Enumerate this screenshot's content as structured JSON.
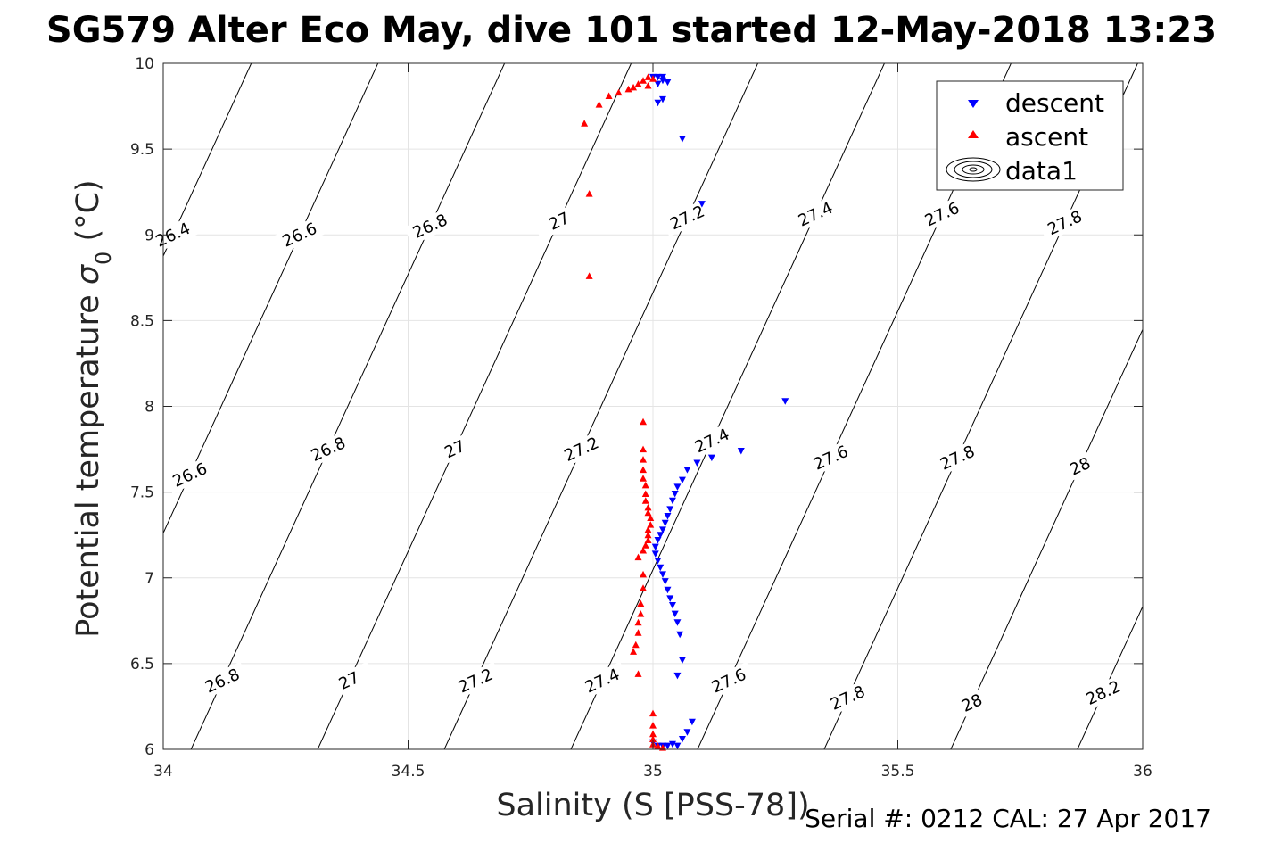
{
  "chart_data": {
    "type": "scatter",
    "title": "SG579 Alter Eco May, dive 101 started 12-May-2018 13:23",
    "xlabel": "Salinity (S [PSS-78])",
    "ylabel_main": "Potential temperature ",
    "ylabel_sigma": "σ",
    "ylabel_sub": "0",
    "ylabel_unit": " (°C)",
    "xlim": [
      34,
      36
    ],
    "ylim": [
      6,
      10
    ],
    "xticks": [
      34,
      34.5,
      35,
      35.5,
      36
    ],
    "xtick_labels": [
      "34",
      "34.5",
      "35",
      "35.5",
      "36"
    ],
    "yticks": [
      6,
      6.5,
      7,
      7.5,
      8,
      8.5,
      9,
      9.5,
      10
    ],
    "ytick_labels": [
      "6",
      "6.5",
      "7",
      "7.5",
      "8",
      "8.5",
      "9",
      "9.5",
      "10"
    ],
    "grid": true,
    "legend_position": "top-right",
    "legend": [
      {
        "name": "descent",
        "marker": "triangle-down",
        "color": "#0000ff"
      },
      {
        "name": "ascent",
        "marker": "triangle-up",
        "color": "#ff0000"
      },
      {
        "name": "data1",
        "marker": "contour",
        "color": "#000000"
      }
    ],
    "footer": "Serial #: 0212  CAL: 27 Apr 2017",
    "contours": {
      "levels": [
        26.4,
        26.6,
        26.8,
        27.0,
        27.2,
        27.4,
        27.6,
        27.8,
        28.0,
        28.2
      ],
      "labels": [
        {
          "text": "26.4",
          "s": 34.08,
          "t": 9.0
        },
        {
          "text": "26.6",
          "s": 34.33,
          "t": 9.0
        },
        {
          "text": "26.8",
          "s": 34.58,
          "t": 9.05
        },
        {
          "text": "27",
          "s": 34.84,
          "t": 9.08
        },
        {
          "text": "27.2",
          "s": 35.13,
          "t": 9.1
        },
        {
          "text": "27.4",
          "s": 35.38,
          "t": 9.12
        },
        {
          "text": "27.6",
          "s": 35.63,
          "t": 9.12
        },
        {
          "text": "27.8",
          "s": 35.87,
          "t": 9.07
        },
        {
          "text": "26.6",
          "s": 34.07,
          "t": 7.6
        },
        {
          "text": "26.8",
          "s": 34.35,
          "t": 7.75
        },
        {
          "text": "27",
          "s": 34.6,
          "t": 7.75
        },
        {
          "text": "27.2",
          "s": 34.85,
          "t": 7.75
        },
        {
          "text": "27.4",
          "s": 35.12,
          "t": 7.8
        },
        {
          "text": "27.6",
          "s": 35.37,
          "t": 7.7
        },
        {
          "text": "27.8",
          "s": 35.61,
          "t": 7.7
        },
        {
          "text": "28",
          "s": 35.86,
          "t": 7.65
        },
        {
          "text": "26.8",
          "s": 34.11,
          "t": 6.4
        },
        {
          "text": "27",
          "s": 34.35,
          "t": 6.4
        },
        {
          "text": "27.2",
          "s": 34.6,
          "t": 6.4
        },
        {
          "text": "27.4",
          "s": 34.85,
          "t": 6.4
        },
        {
          "text": "27.6",
          "s": 35.12,
          "t": 6.4
        },
        {
          "text": "27.8",
          "s": 35.36,
          "t": 6.3
        },
        {
          "text": "28",
          "s": 35.61,
          "t": 6.27
        },
        {
          "text": "28.2",
          "s": 35.86,
          "t": 6.33
        }
      ]
    },
    "series": [
      {
        "name": "descent",
        "marker": "triangle-down",
        "color": "#0000ff",
        "points": [
          [
            35.0,
            9.92
          ],
          [
            35.01,
            9.92
          ],
          [
            35.02,
            9.92
          ],
          [
            35.02,
            9.9
          ],
          [
            35.01,
            9.88
          ],
          [
            35.03,
            9.89
          ],
          [
            35.02,
            9.79
          ],
          [
            35.01,
            9.77
          ],
          [
            35.06,
            9.56
          ],
          [
            35.1,
            9.18
          ],
          [
            35.27,
            8.03
          ],
          [
            35.18,
            7.74
          ],
          [
            35.12,
            7.7
          ],
          [
            35.09,
            7.67
          ],
          [
            35.07,
            7.63
          ],
          [
            35.06,
            7.57
          ],
          [
            35.05,
            7.53
          ],
          [
            35.045,
            7.49
          ],
          [
            35.04,
            7.45
          ],
          [
            35.035,
            7.4
          ],
          [
            35.03,
            7.36
          ],
          [
            35.025,
            7.32
          ],
          [
            35.02,
            7.28
          ],
          [
            35.015,
            7.25
          ],
          [
            35.01,
            7.22
          ],
          [
            35.005,
            7.18
          ],
          [
            35.005,
            7.14
          ],
          [
            35.01,
            7.1
          ],
          [
            35.015,
            7.06
          ],
          [
            35.02,
            7.02
          ],
          [
            35.025,
            6.98
          ],
          [
            35.03,
            6.93
          ],
          [
            35.035,
            6.88
          ],
          [
            35.04,
            6.84
          ],
          [
            35.045,
            6.79
          ],
          [
            35.05,
            6.74
          ],
          [
            35.055,
            6.67
          ],
          [
            35.06,
            6.52
          ],
          [
            35.05,
            6.43
          ],
          [
            35.08,
            6.16
          ],
          [
            35.07,
            6.1
          ],
          [
            35.06,
            6.06
          ],
          [
            35.04,
            6.03
          ],
          [
            35.02,
            6.02
          ],
          [
            35.01,
            6.02
          ],
          [
            35.0,
            6.04
          ],
          [
            35.05,
            6.02
          ],
          [
            35.03,
            6.02
          ]
        ]
      },
      {
        "name": "ascent",
        "marker": "triangle-up",
        "color": "#ff0000",
        "points": [
          [
            34.99,
            9.92
          ],
          [
            35.0,
            9.91
          ],
          [
            34.98,
            9.9
          ],
          [
            34.97,
            9.88
          ],
          [
            34.99,
            9.87
          ],
          [
            34.96,
            9.86
          ],
          [
            34.95,
            9.85
          ],
          [
            34.93,
            9.83
          ],
          [
            34.91,
            9.81
          ],
          [
            34.89,
            9.76
          ],
          [
            34.86,
            9.65
          ],
          [
            34.87,
            9.24
          ],
          [
            34.87,
            8.76
          ],
          [
            34.98,
            7.91
          ],
          [
            34.98,
            7.75
          ],
          [
            34.98,
            7.69
          ],
          [
            34.98,
            7.63
          ],
          [
            34.98,
            7.58
          ],
          [
            34.985,
            7.54
          ],
          [
            34.985,
            7.49
          ],
          [
            34.985,
            7.45
          ],
          [
            34.99,
            7.41
          ],
          [
            34.99,
            7.38
          ],
          [
            34.995,
            7.35
          ],
          [
            34.995,
            7.31
          ],
          [
            34.99,
            7.28
          ],
          [
            34.99,
            7.25
          ],
          [
            34.99,
            7.22
          ],
          [
            34.985,
            7.19
          ],
          [
            34.98,
            7.16
          ],
          [
            34.97,
            7.12
          ],
          [
            34.98,
            7.02
          ],
          [
            34.98,
            6.94
          ],
          [
            34.975,
            6.85
          ],
          [
            34.975,
            6.79
          ],
          [
            34.97,
            6.74
          ],
          [
            34.97,
            6.68
          ],
          [
            34.965,
            6.61
          ],
          [
            34.96,
            6.57
          ],
          [
            34.97,
            6.44
          ],
          [
            35.0,
            6.21
          ],
          [
            35.0,
            6.14
          ],
          [
            35.0,
            6.09
          ],
          [
            35.0,
            6.06
          ],
          [
            35.0,
            6.03
          ],
          [
            35.01,
            6.02
          ],
          [
            35.02,
            6.01
          ]
        ]
      }
    ]
  }
}
